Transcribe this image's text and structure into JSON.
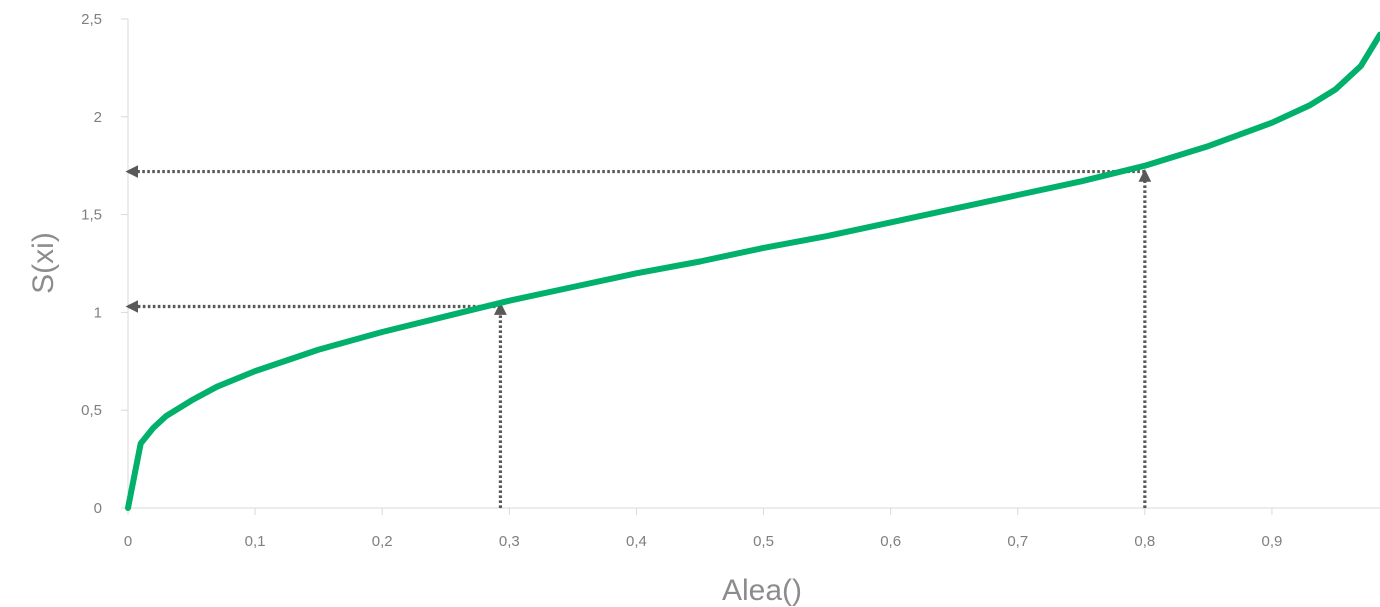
{
  "chart_data": {
    "type": "line",
    "title": "",
    "xlabel": "Alea()",
    "ylabel": "S(xi)",
    "xlim": [
      0,
      0.985
    ],
    "ylim": [
      0,
      2.5
    ],
    "x_ticks": [
      0,
      0.1,
      0.2,
      0.3,
      0.4,
      0.5,
      0.6,
      0.7,
      0.8,
      0.9
    ],
    "x_tick_labels": [
      "0",
      "0,1",
      "0,2",
      "0,3",
      "0,4",
      "0,5",
      "0,6",
      "0,7",
      "0,8",
      "0,9"
    ],
    "y_ticks": [
      0,
      0.5,
      1,
      1.5,
      2,
      2.5
    ],
    "y_tick_labels": [
      "0",
      "0,5",
      "1",
      "1,5",
      "2",
      "2,5"
    ],
    "grid": false,
    "legend": "none",
    "series": [
      {
        "color": "#00b06b",
        "x": [
          0,
          0.01,
          0.02,
          0.03,
          0.05,
          0.07,
          0.1,
          0.15,
          0.2,
          0.25,
          0.3,
          0.35,
          0.4,
          0.45,
          0.5,
          0.55,
          0.6,
          0.65,
          0.7,
          0.75,
          0.8,
          0.85,
          0.9,
          0.93,
          0.95,
          0.97,
          0.985
        ],
        "y": [
          0,
          0.33,
          0.41,
          0.47,
          0.55,
          0.62,
          0.7,
          0.81,
          0.9,
          0.98,
          1.06,
          1.13,
          1.2,
          1.26,
          1.33,
          1.39,
          1.46,
          1.53,
          1.6,
          1.67,
          1.75,
          1.85,
          1.97,
          2.06,
          2.14,
          2.26,
          2.42
        ]
      }
    ],
    "annotations": [
      {
        "type": "dotted-arrow-up",
        "x": 0.293,
        "from_y": 0,
        "to_y": 1.04,
        "color": "#595959"
      },
      {
        "type": "dotted-arrow-left",
        "y": 1.03,
        "from_x": 0.293,
        "to_x": 0,
        "color": "#595959"
      },
      {
        "type": "dotted-arrow-up",
        "x": 0.8,
        "from_y": 0,
        "to_y": 1.72,
        "color": "#595959"
      },
      {
        "type": "dotted-arrow-left",
        "y": 1.72,
        "from_x": 0.8,
        "to_x": 0,
        "color": "#595959"
      }
    ],
    "axis_color": "#d9d9d9"
  }
}
